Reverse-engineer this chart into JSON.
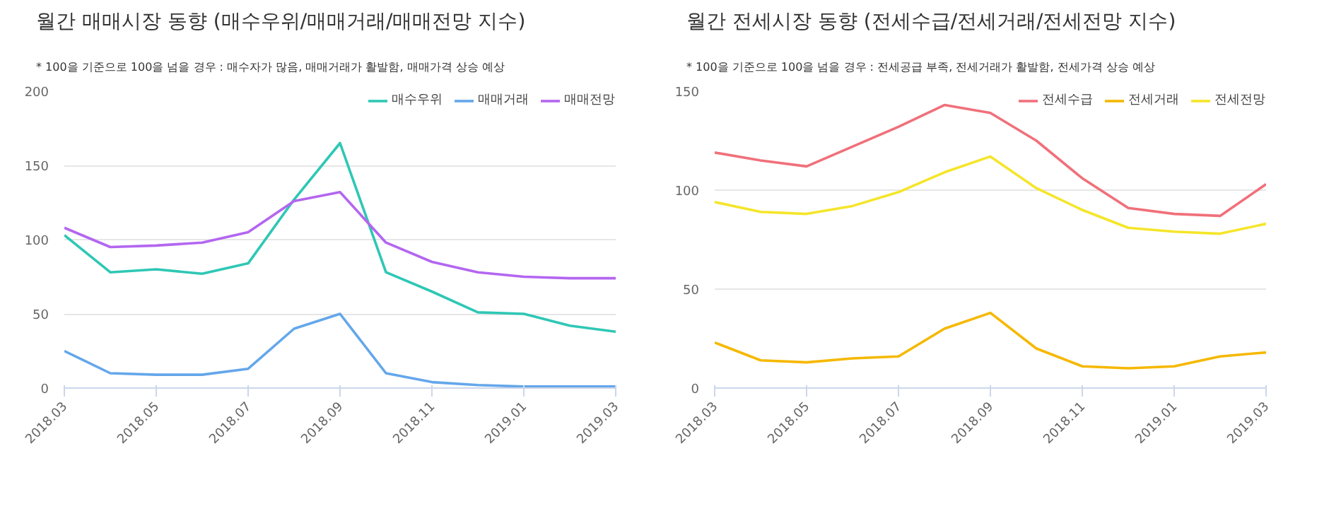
{
  "chart_data": [
    {
      "type": "line",
      "title": "월간 매매시장 동향 (매수우위/매매거래/매매전망 지수)",
      "annotations": [
        "* 100을 기준으로 100을 넘을 경우 : 매수자가 많음, 매매거래가 활발함, 매매가격 상승 예상"
      ],
      "categories": [
        "2018.03",
        null,
        "2018.05",
        null,
        "2018.07",
        null,
        "2018.09",
        null,
        "2018.11",
        null,
        "2019.01",
        null,
        "2019.03"
      ],
      "series": [
        {
          "name": "매수우위",
          "color": "#2ec7b5",
          "values": [
            103,
            78,
            80,
            77,
            84,
            127,
            165,
            78,
            65,
            51,
            50,
            42,
            38
          ]
        },
        {
          "name": "매매거래",
          "color": "#64a7ea",
          "values": [
            25,
            10,
            9,
            9,
            13,
            40,
            50,
            10,
            4,
            2,
            1,
            1,
            1
          ]
        },
        {
          "name": "매매전망",
          "color": "#b366f0",
          "values": [
            108,
            95,
            96,
            98,
            105,
            126,
            132,
            98,
            85,
            78,
            75,
            74,
            74
          ]
        }
      ],
      "ylim": [
        0,
        200
      ],
      "yticks": [
        0,
        50,
        100,
        150,
        200
      ],
      "grid": "y",
      "legend": "top right"
    },
    {
      "type": "line",
      "title": "월간 전세시장 동향 (전세수급/전세거래/전세전망 지수)",
      "annotations": [
        "* 100을 기준으로 100을 넘을 경우 : 전세공급 부족, 전세거래가 활발함, 전세가격 상승 예상"
      ],
      "categories": [
        "2018.03",
        null,
        "2018.05",
        null,
        "2018.07",
        null,
        "2018.09",
        null,
        "2018.11",
        null,
        "2019.01",
        null,
        "2019.03"
      ],
      "series": [
        {
          "name": "전세수급",
          "color": "#f0707a",
          "values": [
            119,
            115,
            112,
            122,
            132,
            143,
            139,
            125,
            106,
            91,
            88,
            87,
            103
          ]
        },
        {
          "name": "전세거래",
          "color": "#f5b800",
          "values": [
            23,
            14,
            13,
            15,
            16,
            30,
            38,
            20,
            11,
            10,
            11,
            16,
            18
          ]
        },
        {
          "name": "전세전망",
          "color": "#f5e52a",
          "values": [
            94,
            89,
            88,
            92,
            99,
            109,
            117,
            101,
            90,
            81,
            79,
            78,
            83
          ]
        }
      ],
      "ylim": [
        0,
        150
      ],
      "yticks": [
        0,
        50,
        100,
        150
      ],
      "grid": "y",
      "legend": "top right"
    }
  ]
}
